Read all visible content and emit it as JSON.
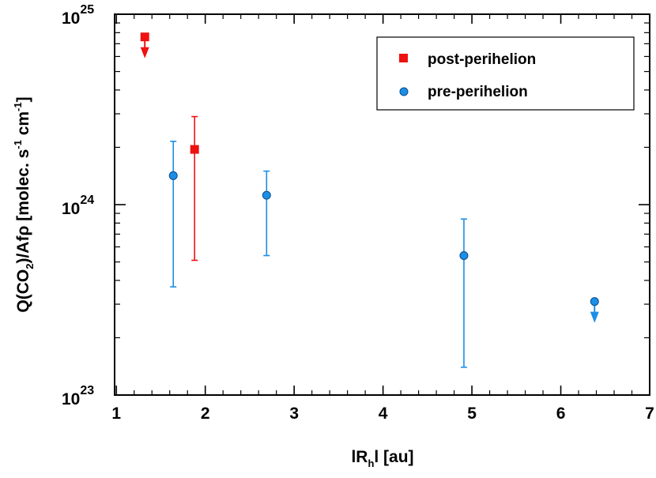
{
  "chart_data": {
    "type": "scatter",
    "xlabel": {
      "pre": "lR",
      "sub": "h",
      "post": "l [au]"
    },
    "ylabel": {
      "p1": "Q(CO",
      "sub": "2",
      "p2": ")/Afρ [molec. s",
      "sup1": "-1",
      "p3": " cm",
      "sup2": "-1",
      "p4": "]"
    },
    "xlim": [
      0.98,
      7.0
    ],
    "ylim": [
      1e+23,
      1e+25
    ],
    "yscale": "log",
    "x_ticks": [
      "1",
      "2",
      "3",
      "4",
      "5",
      "6",
      "7"
    ],
    "y_ticks": [
      {
        "value": 1e+23,
        "base": "10",
        "exp": "23"
      },
      {
        "value": 1e+24,
        "base": "10",
        "exp": "24"
      },
      {
        "value": 1e+25,
        "base": "10",
        "exp": "25"
      }
    ],
    "legend_position": "top-right",
    "series": [
      {
        "name": "post-perihelion",
        "marker": "square",
        "color": "#ee1111",
        "points": [
          {
            "x": 1.32,
            "y": 7.6e+24,
            "upper_limit": true
          },
          {
            "x": 1.88,
            "y": 1.95e+24,
            "err_low": 5.1e+23,
            "err_high": 2.9e+24
          }
        ]
      },
      {
        "name": "pre-perihelion",
        "marker": "circle",
        "color": "#1c8ee6",
        "points": [
          {
            "x": 1.64,
            "y": 1.42e+24,
            "err_low": 3.7e+23,
            "err_high": 2.15e+24
          },
          {
            "x": 2.69,
            "y": 1.12e+24,
            "err_low": 5.4e+23,
            "err_high": 1.5e+24
          },
          {
            "x": 4.91,
            "y": 5.4e+23,
            "err_low": 1.4e+23,
            "err_high": 8.4e+23
          },
          {
            "x": 6.38,
            "y": 3.1e+23,
            "upper_limit": true
          }
        ]
      }
    ],
    "legend": {
      "items": [
        {
          "label": "post-perihelion",
          "marker": "square",
          "color": "#ee1111"
        },
        {
          "label": "pre-perihelion",
          "marker": "circle",
          "color": "#1c8ee6"
        }
      ]
    }
  }
}
